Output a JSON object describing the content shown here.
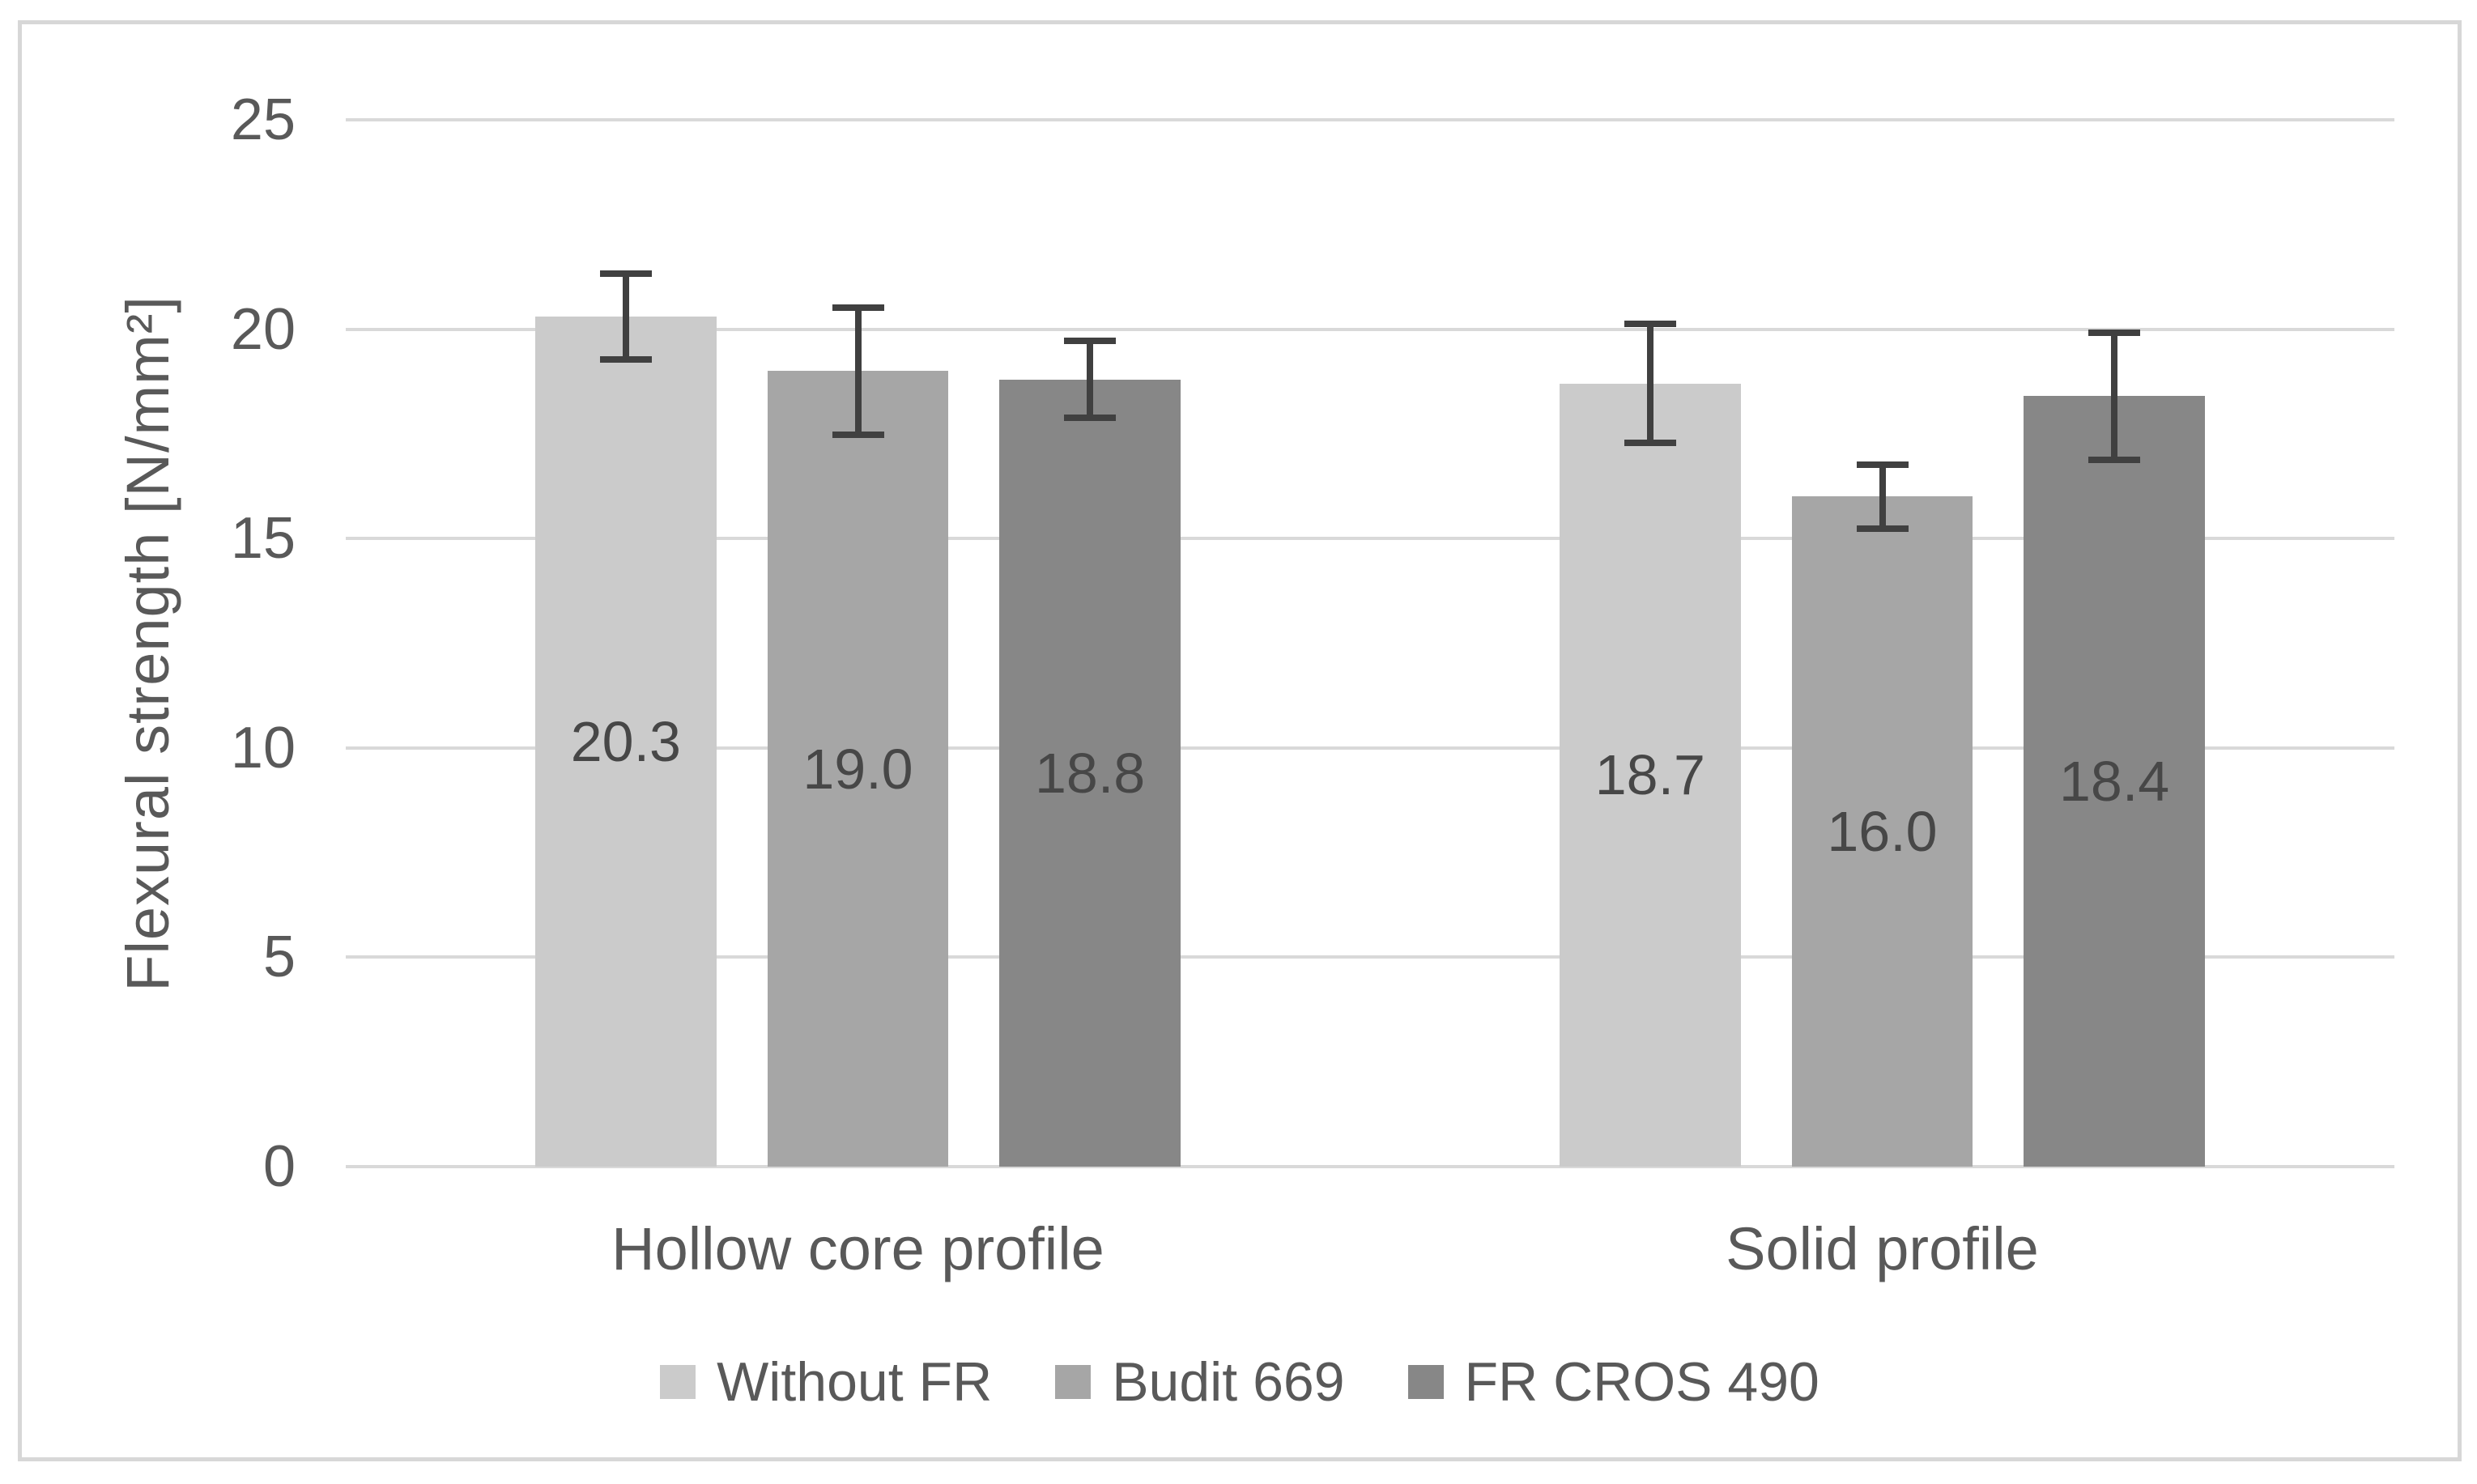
{
  "frame": {
    "border_color": "#d7d7d7",
    "background": "#ffffff"
  },
  "chart_data": {
    "type": "bar",
    "title": "",
    "ylabel": "Flexural strength [N/mm²]",
    "xlabel": "",
    "ylim": [
      0,
      25
    ],
    "yticks": [
      25,
      20,
      15,
      10,
      5,
      0
    ],
    "grid": true,
    "legend_position": "bottom",
    "categories": [
      "Hollow core profile",
      "Solid profile"
    ],
    "series": [
      {
        "name": "Without FR",
        "color": "#cbcbcb",
        "values": [
          20.3,
          18.7
        ],
        "errors": [
          1.1,
          1.5
        ]
      },
      {
        "name": "Budit 669",
        "color": "#a6a6a6",
        "values": [
          19.0,
          16.0
        ],
        "errors": [
          1.6,
          0.85
        ]
      },
      {
        "name": "FR CROS 490",
        "color": "#878787",
        "values": [
          18.8,
          18.4
        ],
        "errors": [
          1.0,
          1.6
        ]
      }
    ],
    "bar_labels": [
      [
        "20.3",
        "18.7"
      ],
      [
        "19.0",
        "16.0"
      ],
      [
        "18.8",
        "18.4"
      ]
    ],
    "colors": {
      "gridline": "#d9d9d9",
      "error_bar": "#404040",
      "axis_text": "#595959",
      "bar_label_text": "#474747"
    }
  }
}
